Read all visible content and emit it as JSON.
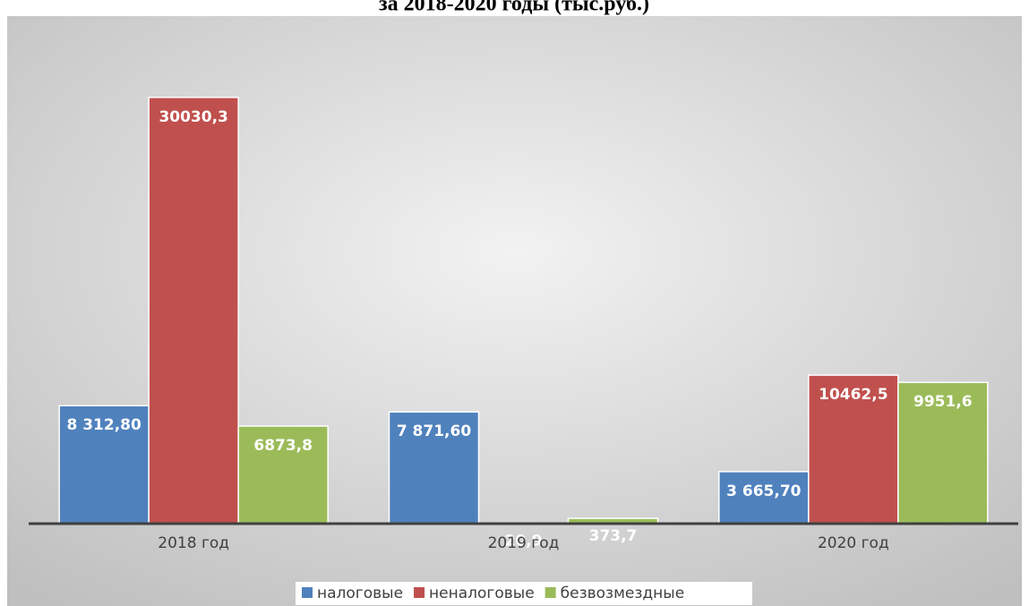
{
  "chart_data": {
    "type": "bar",
    "title": "за 2018-2020 годы (тыс.руб.)",
    "categories": [
      "2018 год",
      "2019 год",
      "2020 год"
    ],
    "series": [
      {
        "name": "налоговые",
        "color": "#4f81bd",
        "values": [
          8312.8,
          7871.6,
          3665.7
        ],
        "value_labels": [
          "8 312,80",
          "7 871,60",
          "3 665,70"
        ]
      },
      {
        "name": "неналоговые",
        "color": "#c0504d",
        "values": [
          30030.3,
          20.9,
          10462.5
        ],
        "value_labels": [
          "30030,3",
          "20,9",
          "10462,5"
        ]
      },
      {
        "name": "безвозмездные",
        "color": "#9bbb59",
        "values": [
          6873.8,
          373.7,
          9951.6
        ],
        "value_labels": [
          "6873,8",
          "373,7",
          "9951,6"
        ]
      }
    ],
    "ylim": [
      0,
      35000
    ],
    "legend": "bottom"
  }
}
